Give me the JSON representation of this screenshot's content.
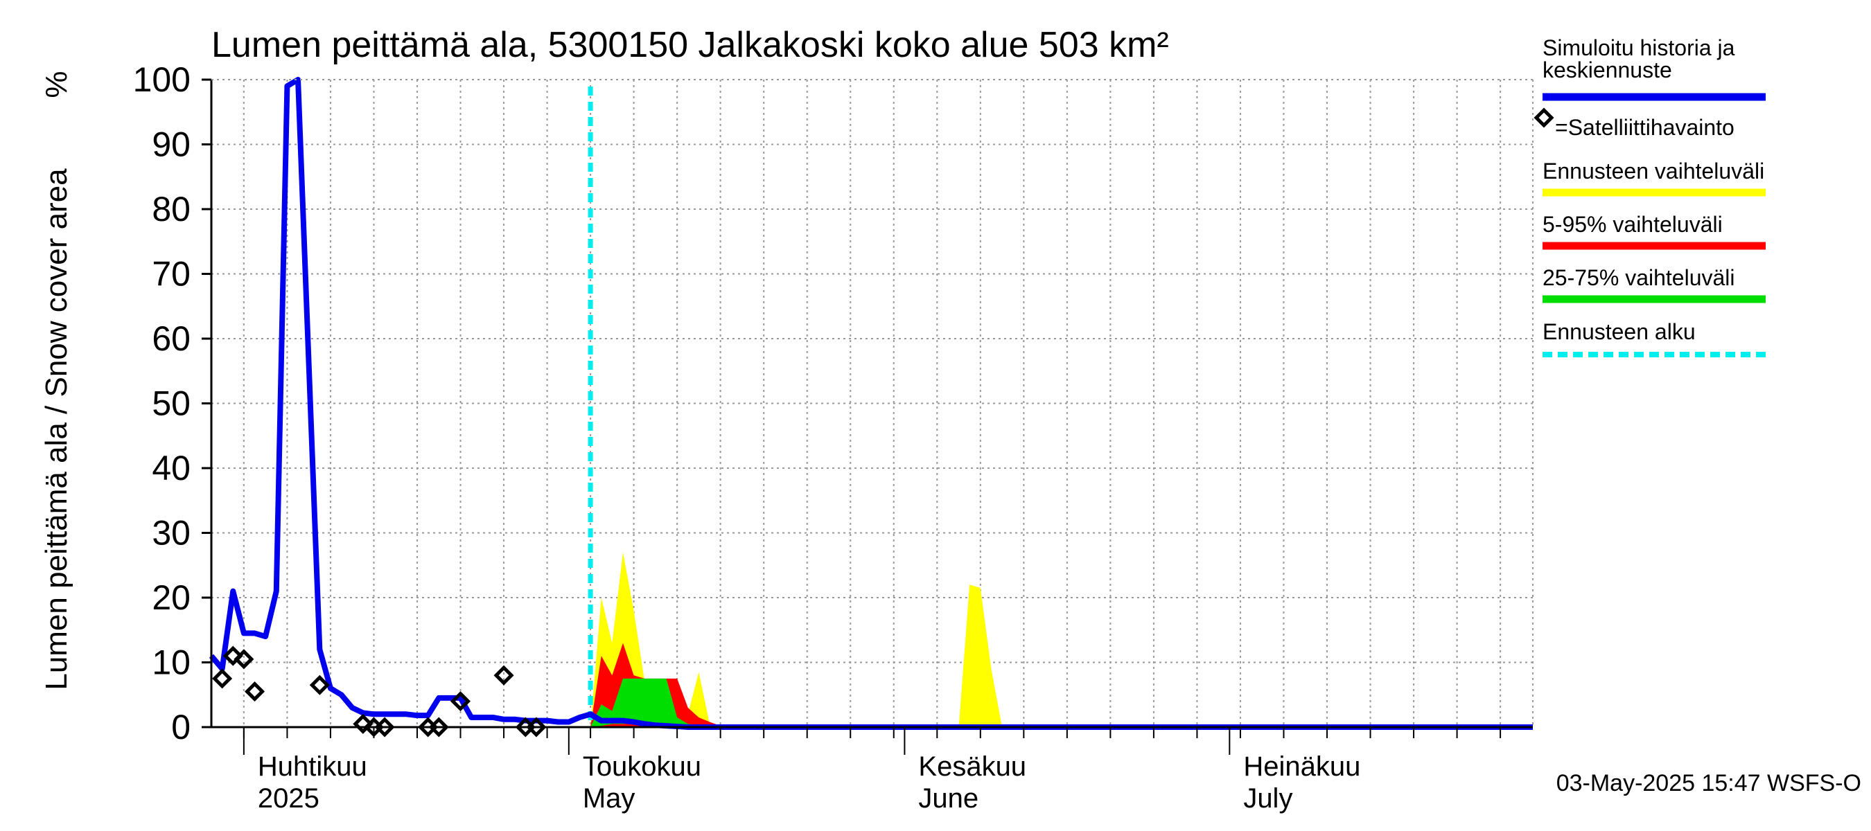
{
  "chart_data": {
    "type": "area",
    "title": "Lumen peittämä ala, 5300150 Jalkakoski koko alue 503 km²",
    "ylabel": "Lumen peittämä ala / Snow cover area",
    "yunit": "%",
    "ylim": [
      0,
      100
    ],
    "yticks": [
      0,
      10,
      20,
      30,
      40,
      50,
      60,
      70,
      80,
      90,
      100
    ],
    "x_day_range": [
      -3,
      119
    ],
    "grid": true,
    "x_month_labels": [
      {
        "day": 0,
        "fi": "Huhtikuu",
        "en": "2025"
      },
      {
        "day": 30,
        "fi": "Toukokuu",
        "en": "May"
      },
      {
        "day": 61,
        "fi": "Kesäkuu",
        "en": "June"
      },
      {
        "day": 91,
        "fi": "Heinäkuu",
        "en": "July"
      }
    ],
    "forecast_start_day": 32,
    "series": [
      {
        "name": "Simuloitu historia ja keskiennuste",
        "color": "#0000ee",
        "x": [
          -3,
          -2,
          -1,
          0,
          1,
          2,
          3,
          4,
          5,
          6,
          7,
          8,
          9,
          10,
          11,
          12,
          13,
          14,
          15,
          16,
          17,
          18,
          19,
          20,
          21,
          22,
          23,
          24,
          25,
          26,
          27,
          28,
          29,
          30,
          31,
          32,
          33,
          34,
          35,
          36,
          37,
          38,
          39,
          40,
          41,
          42,
          43,
          44,
          119
        ],
        "values": [
          11,
          9,
          21,
          14.5,
          14.5,
          14,
          21,
          99,
          100,
          56,
          12,
          6,
          5,
          3,
          2.2,
          2,
          2,
          2,
          2,
          1.8,
          1.8,
          4.5,
          4.5,
          4.5,
          1.5,
          1.5,
          1.5,
          1.2,
          1.2,
          1,
          1,
          1,
          0.8,
          0.8,
          1.5,
          2,
          1,
          1,
          1,
          0.8,
          0.5,
          0.3,
          0.2,
          0.1,
          0,
          0,
          0,
          0,
          0
        ]
      },
      {
        "name": "=Satelliittihavainto",
        "type": "scatter",
        "color": "#000000",
        "x": [
          -2,
          -1,
          0,
          1,
          7,
          11,
          12,
          13,
          17,
          18,
          20,
          24,
          26,
          27
        ],
        "values": [
          7.5,
          11,
          10.5,
          5.5,
          6.5,
          0.5,
          0,
          0,
          0,
          0,
          4,
          8,
          0,
          0
        ]
      },
      {
        "name": "Ennusteen vaihteluväli",
        "color": "#ffff00",
        "x": [
          32,
          33,
          34,
          35,
          36,
          37,
          38,
          39,
          40,
          41,
          42,
          43,
          44,
          45,
          66,
          67,
          68,
          69,
          70,
          71
        ],
        "lower": [
          0,
          0,
          0,
          0,
          0,
          0,
          0,
          0,
          0,
          0,
          0,
          0,
          0,
          0,
          0,
          0,
          0,
          0,
          0,
          0
        ],
        "upper": [
          0,
          20,
          13,
          27,
          18,
          7,
          7,
          7,
          7.5,
          2,
          8.5,
          0.5,
          0,
          0,
          0,
          22,
          21.5,
          9,
          0,
          0
        ]
      },
      {
        "name": "5-95% vaihteluväli",
        "color": "#ff0000",
        "x": [
          32,
          33,
          34,
          35,
          36,
          37,
          38,
          39,
          40,
          41,
          42,
          43,
          44,
          45
        ],
        "lower": [
          0,
          0,
          0,
          0,
          0,
          0,
          0,
          0,
          0,
          0,
          0,
          0,
          0,
          0
        ],
        "upper": [
          0,
          11,
          8,
          13,
          8,
          7.5,
          7.5,
          7.5,
          7.5,
          3,
          1.5,
          0.8,
          0.2,
          0
        ]
      },
      {
        "name": "25-75% vaihteluväli",
        "color": "#00dd00",
        "x": [
          32,
          33,
          34,
          35,
          36,
          37,
          38,
          39,
          40,
          41,
          42,
          43,
          44,
          45
        ],
        "lower": [
          0,
          0.2,
          0.5,
          0.5,
          0.5,
          0.5,
          0.5,
          0.3,
          0.2,
          0,
          0,
          0,
          0,
          0
        ],
        "upper": [
          0,
          3.5,
          2.5,
          7.5,
          7.5,
          7.5,
          7.5,
          7.5,
          1.5,
          0.5,
          0.3,
          0.1,
          0,
          0
        ]
      },
      {
        "name": "Ennusteen alku",
        "color": "#00eeee",
        "type": "vline"
      }
    ],
    "legend": [
      {
        "text": "Simuloitu historia ja",
        "text2": "keskiennuste",
        "color": "#0000ee",
        "style": "solid"
      },
      {
        "text": "=Satelliittihavainto",
        "color": "#000000",
        "style": "marker"
      },
      {
        "text": "Ennusteen vaihteluväli",
        "color": "#ffff00",
        "style": "solid"
      },
      {
        "text": "5-95% vaihteluväli",
        "color": "#ff0000",
        "style": "solid"
      },
      {
        "text": "25-75% vaihteluväli",
        "color": "#00dd00",
        "style": "solid"
      },
      {
        "text": "Ennusteen alku",
        "color": "#00eeee",
        "style": "dashed"
      }
    ],
    "footer": "03-May-2025 15:47 WSFS-O",
    "legend_position": "right"
  }
}
